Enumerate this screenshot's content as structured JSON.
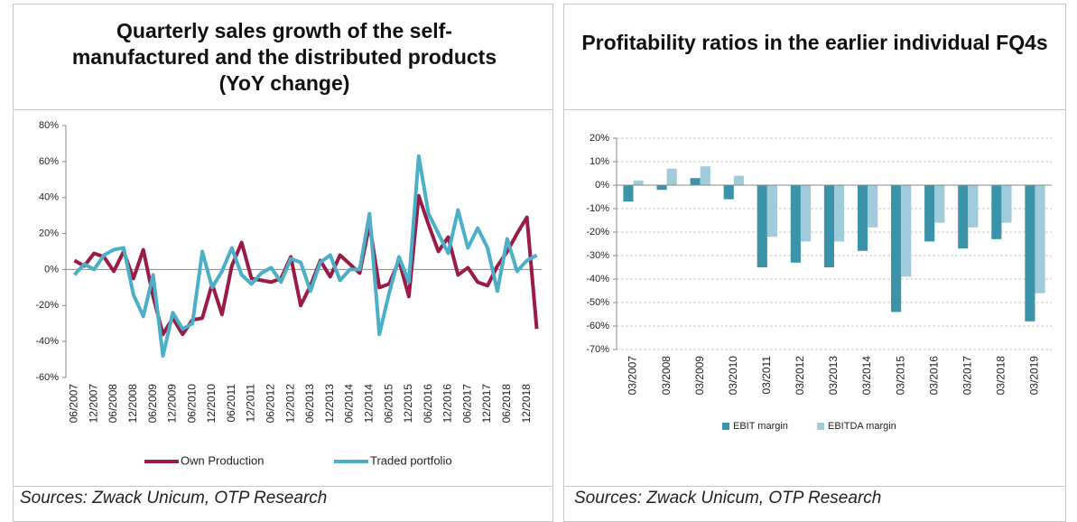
{
  "chart_data": [
    {
      "type": "line",
      "title": "Quarterly sales growth of the self-manufactured and the distributed products (YoY change)",
      "source": "Sources: Zwack Unicum, OTP Research",
      "categories": [
        "06/2007",
        null,
        "12/2007",
        null,
        "06/2008",
        null,
        "12/2008",
        null,
        "06/2009",
        null,
        "12/2009",
        null,
        "06/2010",
        null,
        "12/2010",
        null,
        "06/2011",
        null,
        "12/2011",
        null,
        "06/2012",
        null,
        "12/2012",
        null,
        "06/2013",
        null,
        "12/2013",
        null,
        "06/2014",
        null,
        "12/2014",
        null,
        "06/2015",
        null,
        "12/2015",
        null,
        "06/2016",
        null,
        "12/2016",
        null,
        "06/2017",
        null,
        "12/2017",
        null,
        "06/2018",
        null,
        "12/2018",
        null
      ],
      "series": [
        {
          "name": "Own Production",
          "color": "#9b1b47",
          "values": [
            5,
            2,
            9,
            7,
            -1,
            10,
            -5,
            11,
            -15,
            -36,
            -27,
            -36,
            -28,
            -27,
            -8,
            -25,
            2,
            15,
            -5,
            -6,
            -7,
            -5,
            7,
            -20,
            -9,
            5,
            -4,
            8,
            3,
            -2,
            25,
            -10,
            -8,
            5,
            -15,
            41,
            25,
            10,
            18,
            -3,
            1,
            -7,
            -9,
            2,
            10,
            20,
            29,
            -33
          ]
        },
        {
          "name": "Traded portfolio",
          "color": "#4bafc8",
          "values": [
            -3,
            3,
            0,
            8,
            11,
            12,
            -14,
            -26,
            -3,
            -48,
            -24,
            -33,
            -30,
            10,
            -10,
            -1,
            12,
            -3,
            -8,
            -2,
            1,
            -7,
            6,
            4,
            -12,
            4,
            8,
            -6,
            0,
            0,
            31,
            -36,
            -13,
            7,
            -7,
            63,
            31,
            20,
            9,
            33,
            12,
            23,
            12,
            -12,
            17,
            -1,
            5,
            8
          ]
        }
      ],
      "ylim": [
        -60,
        80
      ],
      "yticks": [
        {
          "value": -60,
          "label": "-60%"
        },
        {
          "value": -40,
          "label": "-40%"
        },
        {
          "value": -20,
          "label": "-20%"
        },
        {
          "value": 0,
          "label": "0%"
        },
        {
          "value": 20,
          "label": "20%"
        },
        {
          "value": 40,
          "label": "40%"
        },
        {
          "value": 60,
          "label": "60%"
        },
        {
          "value": 80,
          "label": "80%"
        }
      ],
      "grid": false
    },
    {
      "type": "bar",
      "title": "Profitability ratios in the earlier individual FQ4s",
      "source": "Sources: Zwack Unicum, OTP Research",
      "categories": [
        "03/2007",
        "03/2008",
        "03/2009",
        "03/2010",
        "03/2011",
        "03/2012",
        "03/2013",
        "03/2014",
        "03/2015",
        "03/2016",
        "03/2017",
        "03/2018",
        "03/2019"
      ],
      "series": [
        {
          "name": "EBIT margin",
          "color": "#3a93a8",
          "values": [
            -7,
            -2,
            3,
            -6,
            -35,
            -33,
            -35,
            -28,
            -54,
            -24,
            -27,
            -23,
            -58
          ]
        },
        {
          "name": "EBITDA margin",
          "color": "#9fcbdb",
          "values": [
            2,
            7,
            8,
            4,
            -22,
            -24,
            -24,
            -18,
            -39,
            -16,
            -18,
            -16,
            -46
          ]
        }
      ],
      "ylim": [
        -70,
        20
      ],
      "yticks": [
        {
          "value": -70,
          "label": "-70%"
        },
        {
          "value": -60,
          "label": "-60%"
        },
        {
          "value": -50,
          "label": "-50%"
        },
        {
          "value": -40,
          "label": "-40%"
        },
        {
          "value": -30,
          "label": "-30%"
        },
        {
          "value": -20,
          "label": "-20%"
        },
        {
          "value": -10,
          "label": "-10%"
        },
        {
          "value": 0,
          "label": "0%"
        },
        {
          "value": 10,
          "label": "10%"
        },
        {
          "value": 20,
          "label": "20%"
        }
      ],
      "grid": true
    }
  ]
}
